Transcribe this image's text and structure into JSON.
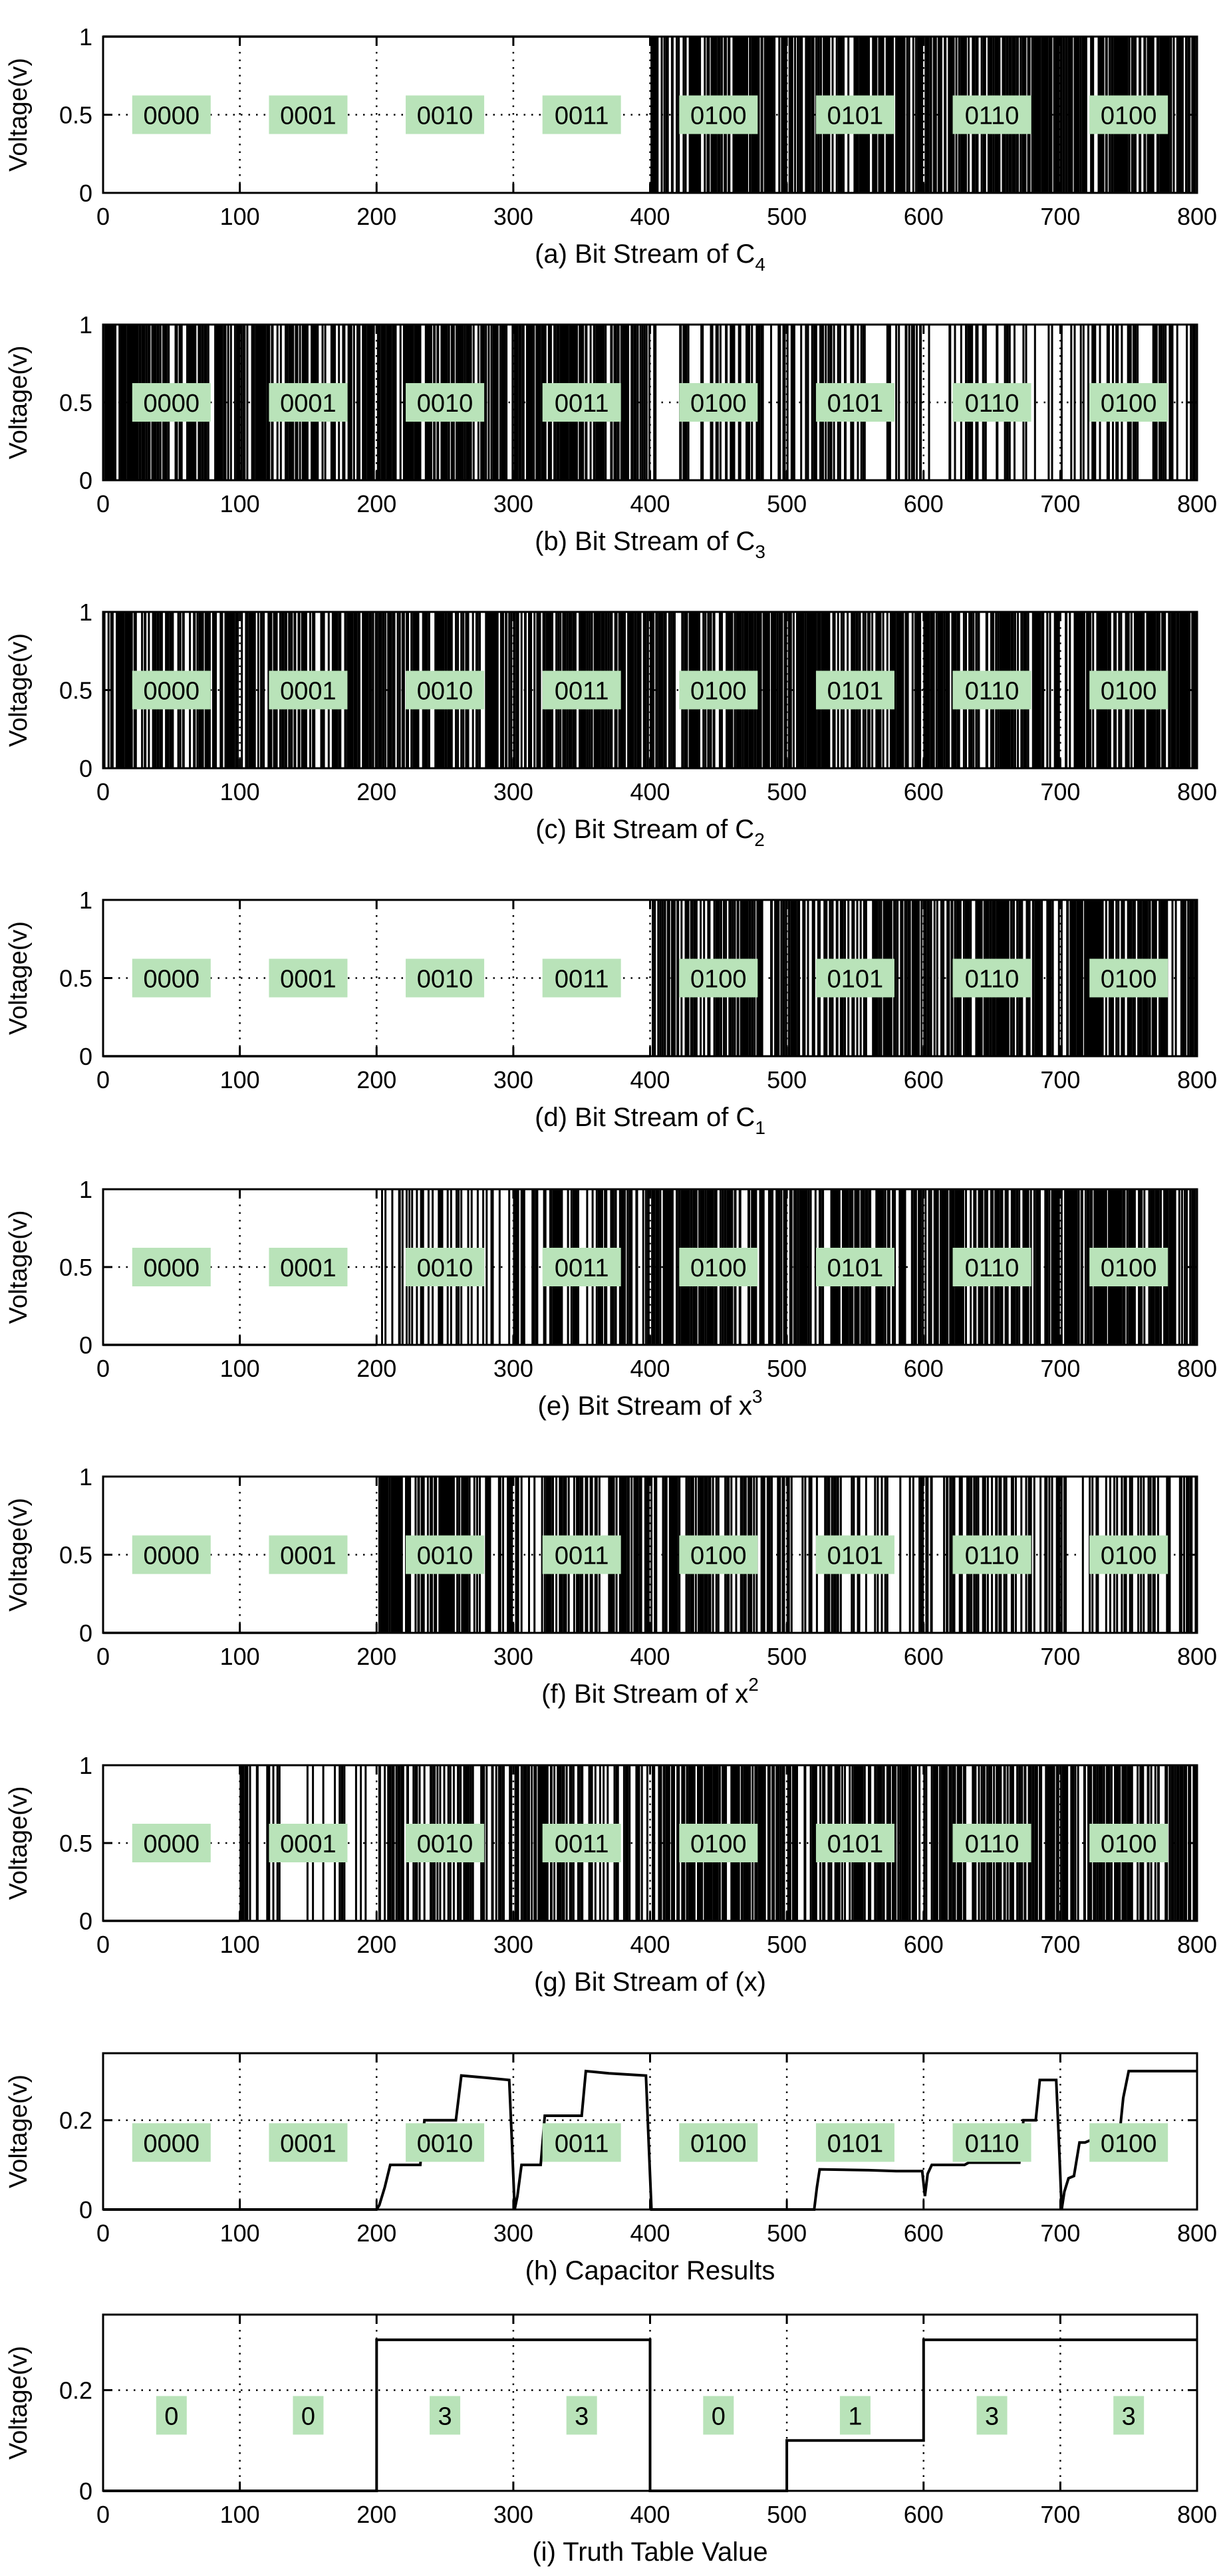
{
  "colors": {
    "label_bg": "#b9e3b9",
    "line": "#000000",
    "grid": "#000000"
  },
  "chart_data": [
    {
      "type": "line",
      "style": "bitstream",
      "title": "",
      "caption": {
        "main": "(a) Bit Stream of C",
        "sub": "4",
        "sup": ""
      },
      "xlabel": "",
      "ylabel": "Voltage(v)",
      "xlim": [
        0,
        800
      ],
      "ylim": [
        0,
        1
      ],
      "xticks": [
        0,
        100,
        200,
        300,
        400,
        500,
        600,
        700,
        800
      ],
      "yticks": [
        0,
        0.5,
        1
      ],
      "ytick_labels": [
        "0",
        "0.5",
        "1"
      ],
      "grid": true,
      "segments": [
        {
          "label": "0000",
          "range": [
            0,
            100
          ],
          "value": 1,
          "density": 0
        },
        {
          "label": "0001",
          "range": [
            100,
            200
          ],
          "value": 1,
          "density": 0
        },
        {
          "label": "0010",
          "range": [
            200,
            300
          ],
          "value": 1,
          "density": 0
        },
        {
          "label": "0011",
          "range": [
            300,
            400
          ],
          "value": 1,
          "density": 0
        },
        {
          "label": "0100",
          "range": [
            400,
            500
          ],
          "value": null,
          "density": 0.92
        },
        {
          "label": "0101",
          "range": [
            500,
            600
          ],
          "value": null,
          "density": 0.92
        },
        {
          "label": "0110",
          "range": [
            600,
            700
          ],
          "value": null,
          "density": 0.92
        },
        {
          "label": "0100",
          "range": [
            700,
            800
          ],
          "value": null,
          "density": 0.92
        }
      ]
    },
    {
      "type": "line",
      "style": "bitstream",
      "title": "",
      "caption": {
        "main": "(b) Bit Stream of C",
        "sub": "3",
        "sup": ""
      },
      "xlabel": "",
      "ylabel": "Voltage(v)",
      "xlim": [
        0,
        800
      ],
      "ylim": [
        0,
        1
      ],
      "xticks": [
        0,
        100,
        200,
        300,
        400,
        500,
        600,
        700,
        800
      ],
      "yticks": [
        0,
        0.5,
        1
      ],
      "ytick_labels": [
        "0",
        "0.5",
        "1"
      ],
      "grid": true,
      "segments": [
        {
          "label": "0000",
          "range": [
            0,
            100
          ],
          "value": null,
          "density": 0.9
        },
        {
          "label": "0001",
          "range": [
            100,
            200
          ],
          "value": null,
          "density": 0.9
        },
        {
          "label": "0010",
          "range": [
            200,
            300
          ],
          "value": null,
          "density": 0.9
        },
        {
          "label": "0011",
          "range": [
            300,
            400
          ],
          "value": null,
          "density": 0.9
        },
        {
          "label": "0100",
          "range": [
            400,
            500
          ],
          "value": null,
          "density": 0.4
        },
        {
          "label": "0101",
          "range": [
            500,
            600
          ],
          "value": null,
          "density": 0.4
        },
        {
          "label": "0110",
          "range": [
            600,
            700
          ],
          "value": null,
          "density": 0.4
        },
        {
          "label": "0100",
          "range": [
            700,
            800
          ],
          "value": null,
          "density": 0.4
        }
      ]
    },
    {
      "type": "line",
      "style": "bitstream",
      "title": "",
      "caption": {
        "main": "(c) Bit Stream of C",
        "sub": "2",
        "sup": ""
      },
      "xlabel": "",
      "ylabel": "Voltage(v)",
      "xlim": [
        0,
        800
      ],
      "ylim": [
        0,
        1
      ],
      "xticks": [
        0,
        100,
        200,
        300,
        400,
        500,
        600,
        700,
        800
      ],
      "yticks": [
        0,
        0.5,
        1
      ],
      "ytick_labels": [
        "0",
        "0.5",
        "1"
      ],
      "grid": true,
      "segments": [
        {
          "label": "0000",
          "range": [
            0,
            100
          ],
          "value": null,
          "density": 0.85
        },
        {
          "label": "0001",
          "range": [
            100,
            200
          ],
          "value": null,
          "density": 0.85
        },
        {
          "label": "0010",
          "range": [
            200,
            300
          ],
          "value": null,
          "density": 0.85
        },
        {
          "label": "0011",
          "range": [
            300,
            400
          ],
          "value": null,
          "density": 0.85
        },
        {
          "label": "0100",
          "range": [
            400,
            500
          ],
          "value": null,
          "density": 0.85
        },
        {
          "label": "0101",
          "range": [
            500,
            600
          ],
          "value": null,
          "density": 0.85
        },
        {
          "label": "0110",
          "range": [
            600,
            700
          ],
          "value": null,
          "density": 0.85
        },
        {
          "label": "0100",
          "range": [
            700,
            800
          ],
          "value": null,
          "density": 0.85
        }
      ]
    },
    {
      "type": "line",
      "style": "bitstream",
      "title": "",
      "caption": {
        "main": "(d) Bit Stream of C",
        "sub": "1",
        "sup": ""
      },
      "xlabel": "",
      "ylabel": "Voltage(v)",
      "xlim": [
        0,
        800
      ],
      "ylim": [
        0,
        1
      ],
      "xticks": [
        0,
        100,
        200,
        300,
        400,
        500,
        600,
        700,
        800
      ],
      "yticks": [
        0,
        0.5,
        1
      ],
      "ytick_labels": [
        "0",
        "0.5",
        "1"
      ],
      "grid": true,
      "segments": [
        {
          "label": "0000",
          "range": [
            0,
            100
          ],
          "value": 0,
          "density": 0
        },
        {
          "label": "0001",
          "range": [
            100,
            200
          ],
          "value": 0,
          "density": 0
        },
        {
          "label": "0010",
          "range": [
            200,
            300
          ],
          "value": 0,
          "density": 0
        },
        {
          "label": "0011",
          "range": [
            300,
            400
          ],
          "value": 0,
          "density": 0
        },
        {
          "label": "0100",
          "range": [
            400,
            500
          ],
          "value": null,
          "density": 0.75
        },
        {
          "label": "0101",
          "range": [
            500,
            600
          ],
          "value": null,
          "density": 0.75
        },
        {
          "label": "0110",
          "range": [
            600,
            700
          ],
          "value": null,
          "density": 0.75
        },
        {
          "label": "0100",
          "range": [
            700,
            800
          ],
          "value": null,
          "density": 0.75
        }
      ]
    },
    {
      "type": "line",
      "style": "bitstream",
      "title": "",
      "caption": {
        "main": "(e) Bit Stream of x",
        "sub": "",
        "sup": "3"
      },
      "xlabel": "",
      "ylabel": "Voltage(v)",
      "xlim": [
        0,
        800
      ],
      "ylim": [
        0,
        1
      ],
      "xticks": [
        0,
        100,
        200,
        300,
        400,
        500,
        600,
        700,
        800
      ],
      "yticks": [
        0,
        0.5,
        1
      ],
      "ytick_labels": [
        "0",
        "0.5",
        "1"
      ],
      "grid": true,
      "segments": [
        {
          "label": "0000",
          "range": [
            0,
            100
          ],
          "value": 0,
          "density": 0
        },
        {
          "label": "0001",
          "range": [
            100,
            200
          ],
          "value": 0,
          "density": 0
        },
        {
          "label": "0010",
          "range": [
            200,
            300
          ],
          "value": null,
          "density": 0.3
        },
        {
          "label": "0011",
          "range": [
            300,
            400
          ],
          "value": null,
          "density": 0.65
        },
        {
          "label": "0100",
          "range": [
            400,
            500
          ],
          "value": null,
          "density": 0.85
        },
        {
          "label": "0101",
          "range": [
            500,
            600
          ],
          "value": null,
          "density": 0.85
        },
        {
          "label": "0110",
          "range": [
            600,
            700
          ],
          "value": null,
          "density": 0.85
        },
        {
          "label": "0100",
          "range": [
            700,
            800
          ],
          "value": null,
          "density": 0.85
        }
      ]
    },
    {
      "type": "line",
      "style": "bitstream",
      "title": "",
      "caption": {
        "main": "(f) Bit Stream of x",
        "sub": "",
        "sup": "2"
      },
      "xlabel": "",
      "ylabel": "Voltage(v)",
      "xlim": [
        0,
        800
      ],
      "ylim": [
        0,
        1
      ],
      "xticks": [
        0,
        100,
        200,
        300,
        400,
        500,
        600,
        700,
        800
      ],
      "yticks": [
        0,
        0.5,
        1
      ],
      "ytick_labels": [
        "0",
        "0.5",
        "1"
      ],
      "grid": true,
      "segments": [
        {
          "label": "0000",
          "range": [
            0,
            100
          ],
          "value": 0,
          "density": 0
        },
        {
          "label": "0001",
          "range": [
            100,
            200
          ],
          "value": 0,
          "density": 0
        },
        {
          "label": "0010",
          "range": [
            200,
            300
          ],
          "value": null,
          "density": 0.75
        },
        {
          "label": "0011",
          "range": [
            300,
            400
          ],
          "value": null,
          "density": 0.55
        },
        {
          "label": "0100",
          "range": [
            400,
            500
          ],
          "value": null,
          "density": 0.75
        },
        {
          "label": "0101",
          "range": [
            500,
            600
          ],
          "value": null,
          "density": 0.45
        },
        {
          "label": "0110",
          "range": [
            600,
            700
          ],
          "value": null,
          "density": 0.55
        },
        {
          "label": "0100",
          "range": [
            700,
            800
          ],
          "value": null,
          "density": 0.45
        }
      ]
    },
    {
      "type": "line",
      "style": "bitstream",
      "title": "",
      "caption": {
        "main": "(g) Bit Stream of (x)",
        "sub": "",
        "sup": ""
      },
      "xlabel": "",
      "ylabel": "Voltage(v)",
      "xlim": [
        0,
        800
      ],
      "ylim": [
        0,
        1
      ],
      "xticks": [
        0,
        100,
        200,
        300,
        400,
        500,
        600,
        700,
        800
      ],
      "yticks": [
        0,
        0.5,
        1
      ],
      "ytick_labels": [
        "0",
        "0.5",
        "1"
      ],
      "grid": true,
      "segments": [
        {
          "label": "0000",
          "range": [
            0,
            100
          ],
          "value": 0,
          "density": 0
        },
        {
          "label": "0001",
          "range": [
            100,
            200
          ],
          "value": null,
          "density": 0.3
        },
        {
          "label": "0010",
          "range": [
            200,
            300
          ],
          "value": null,
          "density": 0.6
        },
        {
          "label": "0011",
          "range": [
            300,
            400
          ],
          "value": null,
          "density": 0.6
        },
        {
          "label": "0100",
          "range": [
            400,
            500
          ],
          "value": null,
          "density": 0.85
        },
        {
          "label": "0101",
          "range": [
            500,
            600
          ],
          "value": null,
          "density": 0.75
        },
        {
          "label": "0110",
          "range": [
            600,
            700
          ],
          "value": null,
          "density": 0.75
        },
        {
          "label": "0100",
          "range": [
            700,
            800
          ],
          "value": null,
          "density": 0.85
        }
      ]
    },
    {
      "type": "line",
      "style": "step",
      "title": "",
      "caption": {
        "main": "(h) Capacitor Results",
        "sub": "",
        "sup": ""
      },
      "xlabel": "",
      "ylabel": "Voltage(v)",
      "xlim": [
        0,
        800
      ],
      "ylim": [
        0,
        0.35
      ],
      "xticks": [
        0,
        100,
        200,
        300,
        400,
        500,
        600,
        700,
        800
      ],
      "yticks": [
        0,
        0.2
      ],
      "ytick_labels": [
        "0",
        "0.2"
      ],
      "grid": true,
      "segment_labels": [
        {
          "label": "0000",
          "x": 50
        },
        {
          "label": "0001",
          "x": 150
        },
        {
          "label": "0010",
          "x": 250
        },
        {
          "label": "0011",
          "x": 350
        },
        {
          "label": "0100",
          "x": 450
        },
        {
          "label": "0101",
          "x": 550
        },
        {
          "label": "0110",
          "x": 650
        },
        {
          "label": "0100",
          "x": 750
        }
      ],
      "label_y": 0.15,
      "x": [
        0,
        200,
        202,
        206,
        210,
        232,
        235,
        258,
        262,
        280,
        297,
        299,
        301,
        303,
        306,
        320,
        323,
        350,
        353,
        370,
        397,
        399,
        401,
        520,
        522,
        524,
        560,
        580,
        599,
        601,
        603,
        606,
        630,
        633,
        670,
        673,
        682,
        685,
        697,
        699,
        701,
        703,
        706,
        710,
        714,
        718,
        722,
        743,
        746,
        750,
        800
      ],
      "y": [
        0,
        0,
        0.01,
        0.05,
        0.1,
        0.1,
        0.2,
        0.2,
        0.3,
        0.295,
        0.29,
        0.15,
        0,
        0.03,
        0.1,
        0.1,
        0.21,
        0.21,
        0.31,
        0.305,
        0.3,
        0.15,
        0,
        0,
        0.05,
        0.09,
        0.088,
        0.086,
        0.086,
        0.03,
        0.08,
        0.1,
        0.1,
        0.105,
        0.105,
        0.2,
        0.2,
        0.29,
        0.29,
        0.15,
        0,
        0.04,
        0.07,
        0.075,
        0.15,
        0.15,
        0.155,
        0.16,
        0.25,
        0.31,
        0.31
      ]
    },
    {
      "type": "line",
      "style": "step",
      "title": "",
      "caption": {
        "main": "(i) Truth Table Value",
        "sub": "",
        "sup": ""
      },
      "xlabel": "",
      "ylabel": "Voltage(v)",
      "xlim": [
        0,
        800
      ],
      "ylim": [
        0,
        0.35
      ],
      "xticks": [
        0,
        100,
        200,
        300,
        400,
        500,
        600,
        700,
        800
      ],
      "yticks": [
        0,
        0.2
      ],
      "ytick_labels": [
        "0",
        "0.2"
      ],
      "grid": true,
      "segment_labels": [
        {
          "label": "0",
          "x": 50
        },
        {
          "label": "0",
          "x": 150
        },
        {
          "label": "3",
          "x": 250
        },
        {
          "label": "3",
          "x": 350
        },
        {
          "label": "0",
          "x": 450
        },
        {
          "label": "1",
          "x": 550
        },
        {
          "label": "3",
          "x": 650
        },
        {
          "label": "3",
          "x": 750
        }
      ],
      "label_y": 0.15,
      "x": [
        0,
        200,
        200,
        400,
        400,
        500,
        500,
        600,
        600,
        800
      ],
      "y": [
        0,
        0,
        0.3,
        0.3,
        0,
        0,
        0.1,
        0.1,
        0.3,
        0.3
      ]
    }
  ]
}
